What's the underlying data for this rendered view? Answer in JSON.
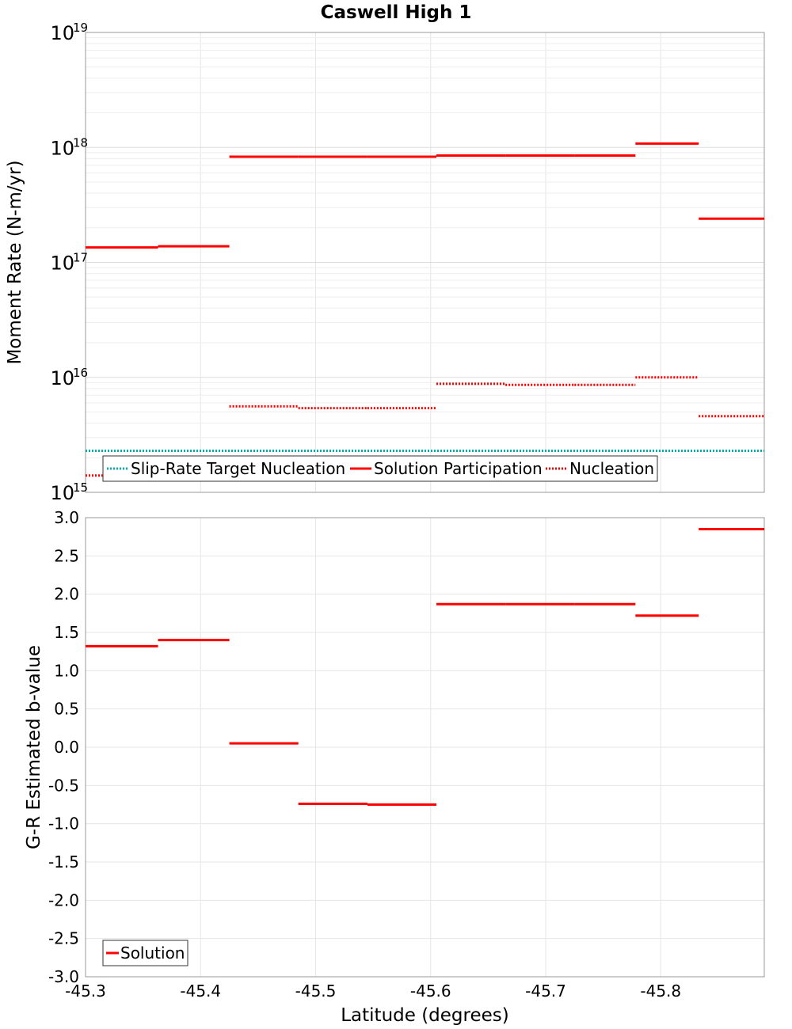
{
  "title": "Caswell High 1",
  "colors": {
    "solution": "#ff0000",
    "nucleation": "#ff0000",
    "target": "#00b0b0",
    "grid": "#e6e6e6",
    "frame": "#999999"
  },
  "chart_data": [
    {
      "type": "line",
      "name": "moment-rate-panel",
      "ylabel": "Moment Rate (N-m/yr)",
      "yscale": "log",
      "ylim": [
        1000000000000000.0,
        1e+19
      ],
      "xlim": [
        -45.3,
        -45.89
      ],
      "y_tick_labels": [
        {
          "base": "10",
          "exp": "19"
        },
        {
          "base": "10",
          "exp": "18"
        },
        {
          "base": "10",
          "exp": "17"
        },
        {
          "base": "10",
          "exp": "16"
        },
        {
          "base": "10",
          "exp": "15"
        }
      ],
      "legend": {
        "placement": "bottom-left",
        "entries": [
          "Slip-Rate Target Nucleation",
          "Solution Participation",
          "Nucleation"
        ]
      },
      "series": [
        {
          "name": "Solution Participation",
          "style": "solid",
          "segments": [
            {
              "x0": -45.3,
              "x1": -45.363,
              "y": 1.35e+17
            },
            {
              "x0": -45.363,
              "x1": -45.425,
              "y": 1.38e+17
            },
            {
              "x0": -45.425,
              "x1": -45.485,
              "y": 8.3e+17
            },
            {
              "x0": -45.485,
              "x1": -45.545,
              "y": 8.3e+17
            },
            {
              "x0": -45.545,
              "x1": -45.605,
              "y": 8.3e+17
            },
            {
              "x0": -45.605,
              "x1": -45.665,
              "y": 8.5e+17
            },
            {
              "x0": -45.665,
              "x1": -45.725,
              "y": 8.5e+17
            },
            {
              "x0": -45.725,
              "x1": -45.778,
              "y": 8.5e+17
            },
            {
              "x0": -45.778,
              "x1": -45.833,
              "y": 1.08e+18
            },
            {
              "x0": -45.833,
              "x1": -45.89,
              "y": 2.4e+17
            }
          ]
        },
        {
          "name": "Nucleation",
          "style": "dotted",
          "segments": [
            {
              "x0": -45.3,
              "x1": -45.363,
              "y": 1400000000000000.0
            },
            {
              "x0": -45.363,
              "x1": -45.425,
              "y": 1650000000000000.0
            },
            {
              "x0": -45.425,
              "x1": -45.485,
              "y": 5600000000000000.0
            },
            {
              "x0": -45.485,
              "x1": -45.545,
              "y": 5400000000000000.0
            },
            {
              "x0": -45.545,
              "x1": -45.605,
              "y": 5400000000000000.0
            },
            {
              "x0": -45.605,
              "x1": -45.665,
              "y": 8800000000000000.0
            },
            {
              "x0": -45.665,
              "x1": -45.725,
              "y": 8600000000000000.0
            },
            {
              "x0": -45.725,
              "x1": -45.778,
              "y": 8600000000000000.0
            },
            {
              "x0": -45.778,
              "x1": -45.833,
              "y": 1e+16
            },
            {
              "x0": -45.833,
              "x1": -45.89,
              "y": 4600000000000000.0
            }
          ]
        },
        {
          "name": "Slip-Rate Target Nucleation",
          "style": "dotted",
          "segments": [
            {
              "x0": -45.3,
              "x1": -45.89,
              "y": 2300000000000000.0
            }
          ]
        }
      ]
    },
    {
      "type": "line",
      "name": "b-value-panel",
      "ylabel": "G-R Estimated b-value",
      "xlabel": "Latitude (degrees)",
      "ylim": [
        -3.0,
        3.0
      ],
      "xlim": [
        -45.3,
        -45.89
      ],
      "y_ticks": [
        "3.0",
        "2.5",
        "2.0",
        "1.5",
        "1.0",
        "0.5",
        "0.0",
        "-0.5",
        "-1.0",
        "-1.5",
        "-2.0",
        "-2.5",
        "-3.0"
      ],
      "x_ticks": [
        "-45.3",
        "-45.4",
        "-45.5",
        "-45.6",
        "-45.7",
        "-45.8"
      ],
      "legend": {
        "placement": "bottom-left",
        "entries": [
          "Solution"
        ]
      },
      "series": [
        {
          "name": "Solution",
          "style": "solid",
          "segments": [
            {
              "x0": -45.3,
              "x1": -45.363,
              "y": 1.32
            },
            {
              "x0": -45.363,
              "x1": -45.425,
              "y": 1.4
            },
            {
              "x0": -45.425,
              "x1": -45.485,
              "y": 0.05
            },
            {
              "x0": -45.485,
              "x1": -45.545,
              "y": -0.74
            },
            {
              "x0": -45.545,
              "x1": -45.605,
              "y": -0.75
            },
            {
              "x0": -45.605,
              "x1": -45.665,
              "y": 1.87
            },
            {
              "x0": -45.665,
              "x1": -45.725,
              "y": 1.87
            },
            {
              "x0": -45.725,
              "x1": -45.778,
              "y": 1.87
            },
            {
              "x0": -45.778,
              "x1": -45.833,
              "y": 1.72
            },
            {
              "x0": -45.833,
              "x1": -45.89,
              "y": 2.85
            }
          ]
        }
      ]
    }
  ]
}
